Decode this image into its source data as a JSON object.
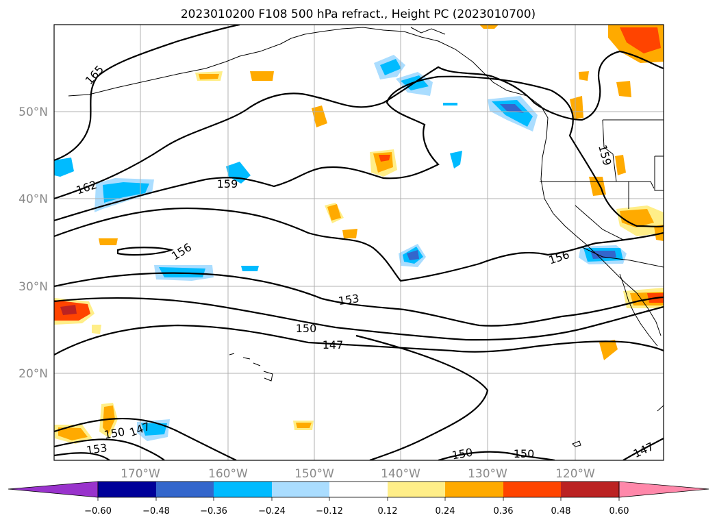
{
  "title": "2023010200 F108 500 hPa refract., Height PC (2023010700)",
  "map": {
    "lat_labels": [
      "50°N",
      "40°N",
      "30°N",
      "20°N"
    ],
    "lon_labels": [
      "170°W",
      "160°W",
      "150°W",
      "140°W",
      "130°W",
      "120°W"
    ],
    "extent": {
      "lon_min": -180,
      "lon_max": -110,
      "lat_min": 10,
      "lat_max": 60
    },
    "gridlines": true
  },
  "contours": {
    "levels": [
      147,
      150,
      153,
      156,
      159,
      162,
      165
    ],
    "labels": [
      {
        "text": "165",
        "rot": -48
      },
      {
        "text": "162",
        "rot": -18
      },
      {
        "text": "159",
        "rot": 0
      },
      {
        "text": "156",
        "rot": -32
      },
      {
        "text": "153",
        "rot": -8
      },
      {
        "text": "150",
        "rot": 0
      },
      {
        "text": "147",
        "rot": 0
      },
      {
        "text": "156",
        "rot": -18
      },
      {
        "text": "159",
        "rot": 75
      },
      {
        "text": "150",
        "rot": -10
      },
      {
        "text": "147",
        "rot": -20
      },
      {
        "text": "153",
        "rot": -8
      },
      {
        "text": "150",
        "rot": -10
      },
      {
        "text": "150",
        "rot": 0
      },
      {
        "text": "147",
        "rot": -25
      }
    ]
  },
  "colorbar": {
    "colors": [
      "#9933cc",
      "#000099",
      "#3366cc",
      "#00bbff",
      "#aaddff",
      "#ffffff",
      "#ffee88",
      "#ffaa00",
      "#ff4400",
      "#bb2222",
      "#ff88aa"
    ],
    "tick_labels": [
      "−0.60",
      "−0.48",
      "−0.36",
      "−0.24",
      "−0.12",
      "0.12",
      "0.24",
      "0.36",
      "0.48",
      "0.60"
    ]
  }
}
